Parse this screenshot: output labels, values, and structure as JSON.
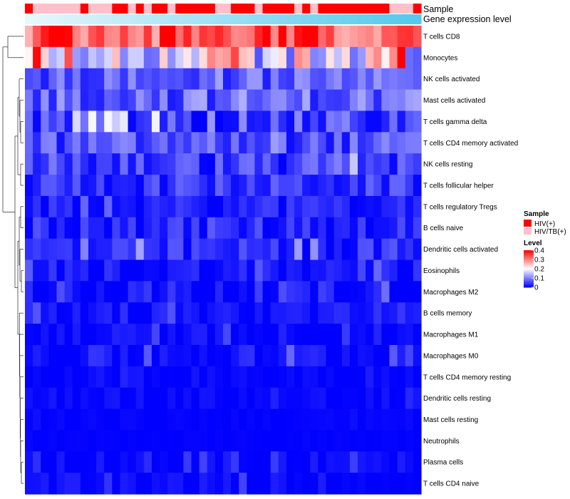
{
  "chart_data": {
    "type": "heatmap",
    "annotation_tracks": [
      "Sample",
      "Gene expression level"
    ],
    "columns": 50,
    "sample_groups": [
      "HIV(+)",
      "HIV/TB(+)",
      "HIV/TB(+)",
      "HIV/TB(+)",
      "HIV/TB(+)",
      "HIV/TB(+)",
      "HIV/TB(+)",
      "HIV(+)",
      "HIV/TB(+)",
      "HIV/TB(+)",
      "HIV/TB(+)",
      "HIV(+)",
      "HIV(+)",
      "HIV/TB(+)",
      "HIV(+)",
      "HIV/TB(+)",
      "HIV(+)",
      "HIV(+)",
      "HIV/TB(+)",
      "HIV(+)",
      "HIV(+)",
      "HIV(+)",
      "HIV(+)",
      "HIV(+)",
      "HIV/TB(+)",
      "HIV/TB(+)",
      "HIV(+)",
      "HIV(+)",
      "HIV(+)",
      "HIV/TB(+)",
      "HIV(+)",
      "HIV(+)",
      "HIV(+)",
      "HIV(+)",
      "HIV/TB(+)",
      "HIV(+)",
      "HIV/TB(+)",
      "HIV(+)",
      "HIV(+)",
      "HIV(+)",
      "HIV(+)",
      "HIV(+)",
      "HIV(+)",
      "HIV(+)",
      "HIV(+)",
      "HIV(+)",
      "HIV/TB(+)",
      "HIV/TB(+)",
      "HIV/TB(+)",
      "HIV(+)"
    ],
    "rows": [
      "T cells CD8",
      "Monocytes",
      "NK cells activated",
      "Mast cells activated",
      "T cells gamma delta",
      "T cells CD4 memory activated",
      "NK cells resting",
      "T cells follicular helper",
      "T cells regulatory  Tregs",
      "B cells naive",
      "Dendritic cells activated",
      "Eosinophils",
      "Macrophages M2",
      "B cells memory",
      "Macrophages M1",
      "Macrophages M0",
      "T cells CD4 memory resting",
      "Dendritic cells resting",
      "Mast cells resting",
      "Neutrophils",
      "Plasma cells",
      "T cells CD4 naive"
    ],
    "row_base_level": [
      0.34,
      0.18,
      0.07,
      0.08,
      0.05,
      0.06,
      0.045,
      0.04,
      0.02,
      0.03,
      0.03,
      0.015,
      0.015,
      0.012,
      0.008,
      0.012,
      0.004,
      0.004,
      0.002,
      0.001,
      0.005,
      0.004
    ],
    "row_variability": [
      0.08,
      0.12,
      0.05,
      0.06,
      0.06,
      0.05,
      0.05,
      0.04,
      0.03,
      0.04,
      0.04,
      0.03,
      0.035,
      0.025,
      0.02,
      0.03,
      0.015,
      0.015,
      0.005,
      0.003,
      0.02,
      0.02
    ],
    "color_scale": {
      "min": 0,
      "max": 0.4,
      "low": "#0000ff",
      "mid": "#ffffff",
      "high": "#ff0000",
      "midpoint": 0.2
    },
    "group_colors": {
      "HIV(+)": "#ff0000",
      "HIV/TB(+)": "#ffc0cb"
    },
    "expression_gradient": [
      "#e8f7fc",
      "#55c8ec"
    ],
    "legend": {
      "sample_title": "Sample",
      "sample_items": [
        "HIV(+)",
        "HIV/TB(+)"
      ],
      "level_title": "Level",
      "level_ticks": [
        "0.4",
        "0.3",
        "0.2",
        "0.1",
        "0"
      ],
      "level_tick_values": [
        0.4,
        0.3,
        0.2,
        0.1,
        0
      ]
    }
  }
}
